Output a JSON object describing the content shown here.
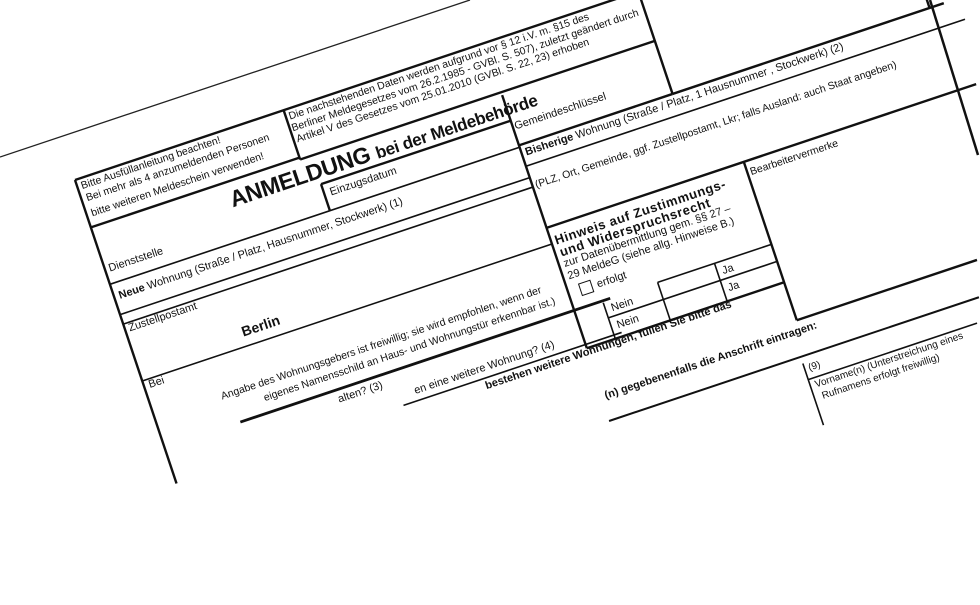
{
  "form": {
    "instructions": [
      "Bitte Ausfüllanleitung beachten!",
      "Bei mehr als 4 anzumeldenden Personen",
      "bitte weiteren Meldeschein verwenden!"
    ],
    "legal_notice": [
      "Die nachstehenden Daten werden aufgrund vor § 12 i.V. m. §15 des",
      "Berliner Meldegesetzes vom 26.2.1985 - GVBl. S. 507), zuletzt geändert durch",
      "Artikel V  des Gesetzes vom 25.01.2010 (GVBl. S. 22, 23)  erhoben"
    ],
    "title": "ANMELDUNG",
    "title_sub": "bei der Meldebehörde",
    "einzugsdatum": "Einzugsdatum",
    "dienststelle": "Dienststelle",
    "neue_wohnung_bold": "Neue",
    "neue_wohnung": "Wohnung (Straße / Platz, Hausnummer, Stockwerk) (1)",
    "zustellpostamt": "Zustellpostamt",
    "zustellpostamt_value": "Berlin",
    "bei": "Bei",
    "wohnungsgeber_note": [
      "Angabe des Wohnungsgebers ist freiwillig; sie wird empfohlen, wenn der",
      "eigenes Namensschild an Haus- und Wohnungstür erkennbar ist.)"
    ],
    "question_3": "alten? (3)",
    "question_4": "en eine weitere Wohnung? (4)",
    "weitere_wohnungen": "bestehen weitere Wohnungen, füllen Sie bitte das",
    "anschrift_eintragen": "(n) gegebenenfalls die Anschrift eintragen:",
    "gemeindeschluessel": "Gemeindeschlüssel",
    "bisherige_bold": "Bisherige",
    "bisherige": "Wohnung (Straße / Platz, 1 Hausnummer  , Stockwerk)  (2)",
    "plz_hint": "(PLZ, Ort, Gemeinde, ggf. Zustellpostamt, Lkr; falls Ausland: auch Staat angeben)",
    "bearbeitervermerke": "Bearbeitervermerke",
    "hinweis": {
      "title_1": "Hinweis auf Zustimmungs-",
      "title_2": "und Widerspruchsrecht",
      "text_1": "zur Datenübermittlung  gem. §§ 27 –",
      "text_2": "29 MeldeG (siehe allg. Hinweise B.)",
      "checkbox_label": "erfolgt",
      "checked": false,
      "ja": [
        "Ja",
        "Ja"
      ],
      "nein": [
        "Nein",
        "Nein"
      ]
    },
    "field_9_number": "(9)",
    "vorname": [
      "Vorname(n) (Unterstreichung eines",
      "Rufnamens erfolgt freiwillig)"
    ]
  }
}
